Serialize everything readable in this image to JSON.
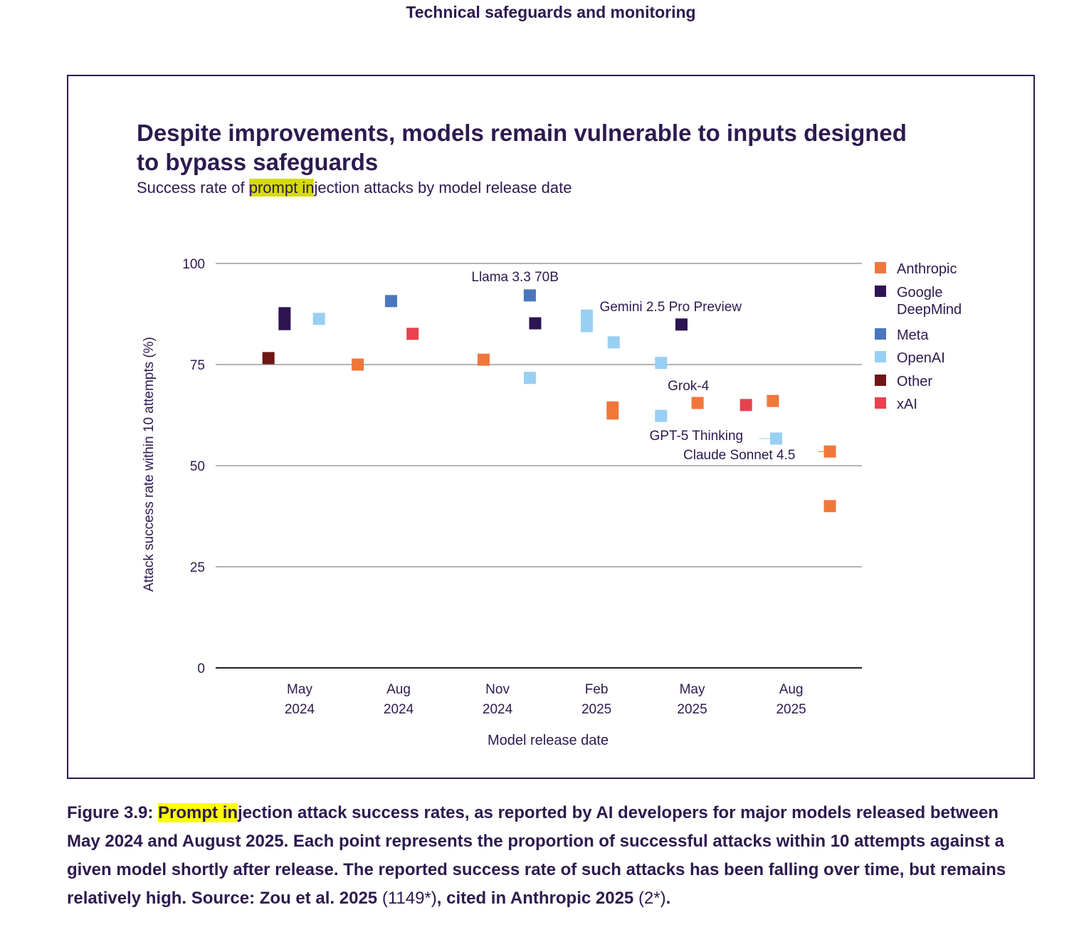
{
  "header": "Technical safeguards and monitoring",
  "chart_title": "Despite improvements, models remain vulnerable to inputs designed to bypass safeguards",
  "subtitle": {
    "highlight": "prompt in",
    "before": "Success rate of ",
    "after": "jection attacks by model release date"
  },
  "colors": {
    "text": "#2d1a4f",
    "subtitle_highlight": "#d4dc00",
    "caption_highlight": "#ffff00"
  },
  "chart_data": {
    "type": "scatter",
    "title": "Despite improvements, models remain vulnerable to inputs designed to bypass safeguards",
    "subtitle": "Success rate of prompt injection attacks by model release date",
    "xlabel": "Model release date",
    "ylabel": "Attack success rate within 10 attempts (%)",
    "ylim": [
      0,
      100
    ],
    "yticks": [
      0,
      25,
      50,
      75,
      100
    ],
    "xlim": [
      "2024-03-01",
      "2025-10-01"
    ],
    "xticks": [
      {
        "date": "2024-05-01",
        "label": [
          "May",
          "2024"
        ]
      },
      {
        "date": "2024-08-01",
        "label": [
          "Aug",
          "2024"
        ]
      },
      {
        "date": "2024-11-01",
        "label": [
          "Nov",
          "2024"
        ]
      },
      {
        "date": "2025-02-01",
        "label": [
          "Feb",
          "2025"
        ]
      },
      {
        "date": "2025-05-01",
        "label": [
          "May",
          "2025"
        ]
      },
      {
        "date": "2025-08-01",
        "label": [
          "Aug",
          "2025"
        ]
      }
    ],
    "grid": "horizontal",
    "legend_position": "right",
    "series": [
      {
        "name": "Anthropic",
        "color": "#f0773b",
        "points": [
          {
            "x": "2024-06-24",
            "y": 75.0
          },
          {
            "x": "2024-10-19",
            "y": 76.2
          },
          {
            "x": "2025-02-16",
            "y": 64.4
          },
          {
            "x": "2025-02-16",
            "y": 62.9
          },
          {
            "x": "2025-05-06",
            "y": 65.5
          },
          {
            "x": "2025-07-15",
            "y": 66.0
          },
          {
            "x": "2025-09-06",
            "y": 53.5
          },
          {
            "x": "2025-09-06",
            "y": 40.0
          }
        ]
      },
      {
        "name": "Google DeepMind",
        "color": "#2d1452",
        "points": [
          {
            "x": "2024-04-17",
            "y": 87.7
          },
          {
            "x": "2024-04-17",
            "y": 85.0
          },
          {
            "x": "2024-12-06",
            "y": 85.2
          },
          {
            "x": "2025-04-21",
            "y": 84.9
          }
        ]
      },
      {
        "name": "Meta",
        "color": "#4a76be",
        "points": [
          {
            "x": "2024-07-25",
            "y": 90.7
          },
          {
            "x": "2024-12-01",
            "y": 92.1
          }
        ]
      },
      {
        "name": "OpenAI",
        "color": "#98cff3",
        "points": [
          {
            "x": "2024-05-19",
            "y": 86.3
          },
          {
            "x": "2024-12-01",
            "y": 71.7
          },
          {
            "x": "2025-01-23",
            "y": 87.1
          },
          {
            "x": "2025-01-23",
            "y": 84.5
          },
          {
            "x": "2025-02-17",
            "y": 80.5
          },
          {
            "x": "2025-04-02",
            "y": 75.4
          },
          {
            "x": "2025-04-02",
            "y": 62.3
          },
          {
            "x": "2025-07-18",
            "y": 56.7
          }
        ]
      },
      {
        "name": "Other",
        "color": "#6f1616",
        "points": [
          {
            "x": "2024-04-02",
            "y": 76.6
          }
        ]
      },
      {
        "name": "xAI",
        "color": "#e8414f",
        "points": [
          {
            "x": "2024-08-14",
            "y": 82.6
          },
          {
            "x": "2025-06-20",
            "y": 65.0
          }
        ]
      }
    ],
    "annotations": [
      {
        "text": "Llama 3.3 70B",
        "x": "2024-12-01",
        "y": 92.1
      },
      {
        "text": "Gemini 2.5 Pro Preview",
        "x": "2025-04-21",
        "y": 84.9
      },
      {
        "text": "Grok-4",
        "x": "2025-06-20",
        "y": 65.0
      },
      {
        "text": "GPT-5 Thinking",
        "x": "2025-07-18",
        "y": 56.7
      },
      {
        "text": "Claude Sonnet 4.5",
        "x": "2025-09-06",
        "y": 53.5
      }
    ]
  },
  "caption": {
    "label": "Figure 3.9: ",
    "highlight": "Prompt in",
    "text": "jection attack success rates, as reported by AI developers for major models released between May 2024 and August 2025. Each point represents the proportion of successful attacks within 10 attempts against a given model shortly after release. The reported success rate of such attacks has been falling over time, but remains relatively high. Source: Zou et al. 2025 ",
    "ref1": "(1149*)",
    "mid": ", cited in Anthropic 2025 ",
    "ref2": "(2*)",
    "end": "."
  }
}
